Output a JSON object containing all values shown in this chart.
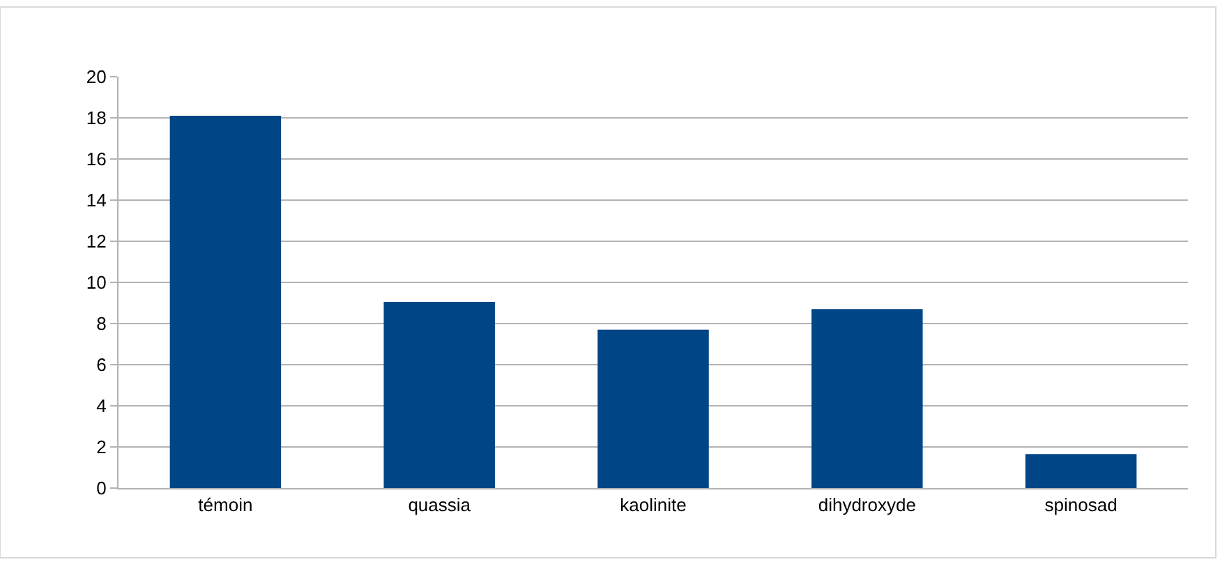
{
  "chart_data": {
    "type": "bar",
    "categories": [
      "témoin",
      "quassia",
      "kaolinite",
      "dihydroxyde",
      "spinosad"
    ],
    "values": [
      18.1,
      9.05,
      7.7,
      8.7,
      1.65
    ],
    "color": "#004586",
    "ylim": [
      0,
      20
    ],
    "yticks": [
      0,
      2,
      4,
      6,
      8,
      10,
      12,
      14,
      16,
      18,
      20
    ],
    "grid": "y",
    "legend": false
  }
}
